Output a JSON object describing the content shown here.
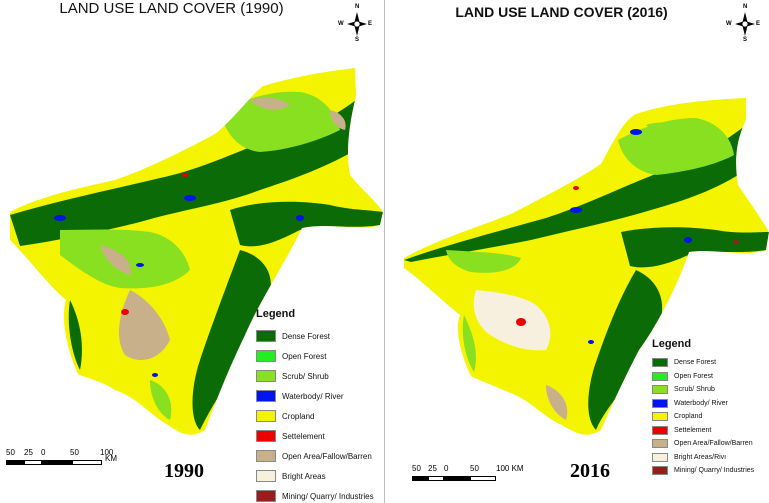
{
  "colors": {
    "dense_forest": "#0b6b06",
    "open_forest": "#22ee22",
    "scrub_shrub": "#88e020",
    "waterbody_river": "#0014ee",
    "cropland": "#f4f400",
    "settelement": "#ee0000",
    "open_area": "#c8b08a",
    "bright_areas": "#f7f0df",
    "mining": "#9a1d1d"
  },
  "panels": [
    {
      "title": "LAND USE LAND COVER (1990)",
      "year": "1990",
      "legend": {
        "title": "Legend",
        "items": [
          {
            "label": "Dense Forest",
            "color": "#0b6b06"
          },
          {
            "label": "Open Forest",
            "color": "#22ee22"
          },
          {
            "label": "Scrub/ Shrub",
            "color": "#88e020"
          },
          {
            "label": "Waterbody/ River",
            "color": "#0014ee"
          },
          {
            "label": "Cropland",
            "color": "#f4f400"
          },
          {
            "label": "Settelement",
            "color": "#ee0000"
          },
          {
            "label": "Open Area/Fallow/Barren",
            "color": "#c8b08a"
          },
          {
            "label": "Bright Areas",
            "color": "#f7f0df"
          },
          {
            "label": "Mining/ Quarry/ Industries",
            "color": "#9a1d1d"
          }
        ]
      },
      "scale": {
        "ticks": [
          "50",
          "25",
          "0",
          "50",
          "100"
        ],
        "unit": "KM"
      },
      "compass": {
        "n": "N",
        "s": "S",
        "e": "E",
        "w": "W"
      }
    },
    {
      "title": "LAND USE LAND COVER (2016)",
      "year": "2016",
      "legend": {
        "title": "Legend",
        "items": [
          {
            "label": "Dense Forest",
            "color": "#0b6b06"
          },
          {
            "label": "Open Forest",
            "color": "#22ee22"
          },
          {
            "label": "Scrub/ Shrub",
            "color": "#88e020"
          },
          {
            "label": "Waterbody/ River",
            "color": "#0014ee"
          },
          {
            "label": "Cropland",
            "color": "#f4f400"
          },
          {
            "label": "Settelement",
            "color": "#ee0000"
          },
          {
            "label": "Open Area/Fallow/Barren",
            "color": "#c8b08a"
          },
          {
            "label": "Bright Areas/Rivı",
            "color": "#f7f0df"
          },
          {
            "label": "Mining/ Quarry/ Industries",
            "color": "#9a1d1d"
          }
        ]
      },
      "scale": {
        "ticks": [
          "50",
          "25",
          "0",
          "50",
          "100 KM"
        ],
        "unit": ""
      },
      "compass": {
        "n": "N",
        "s": "S",
        "e": "E",
        "w": "W"
      }
    }
  ]
}
